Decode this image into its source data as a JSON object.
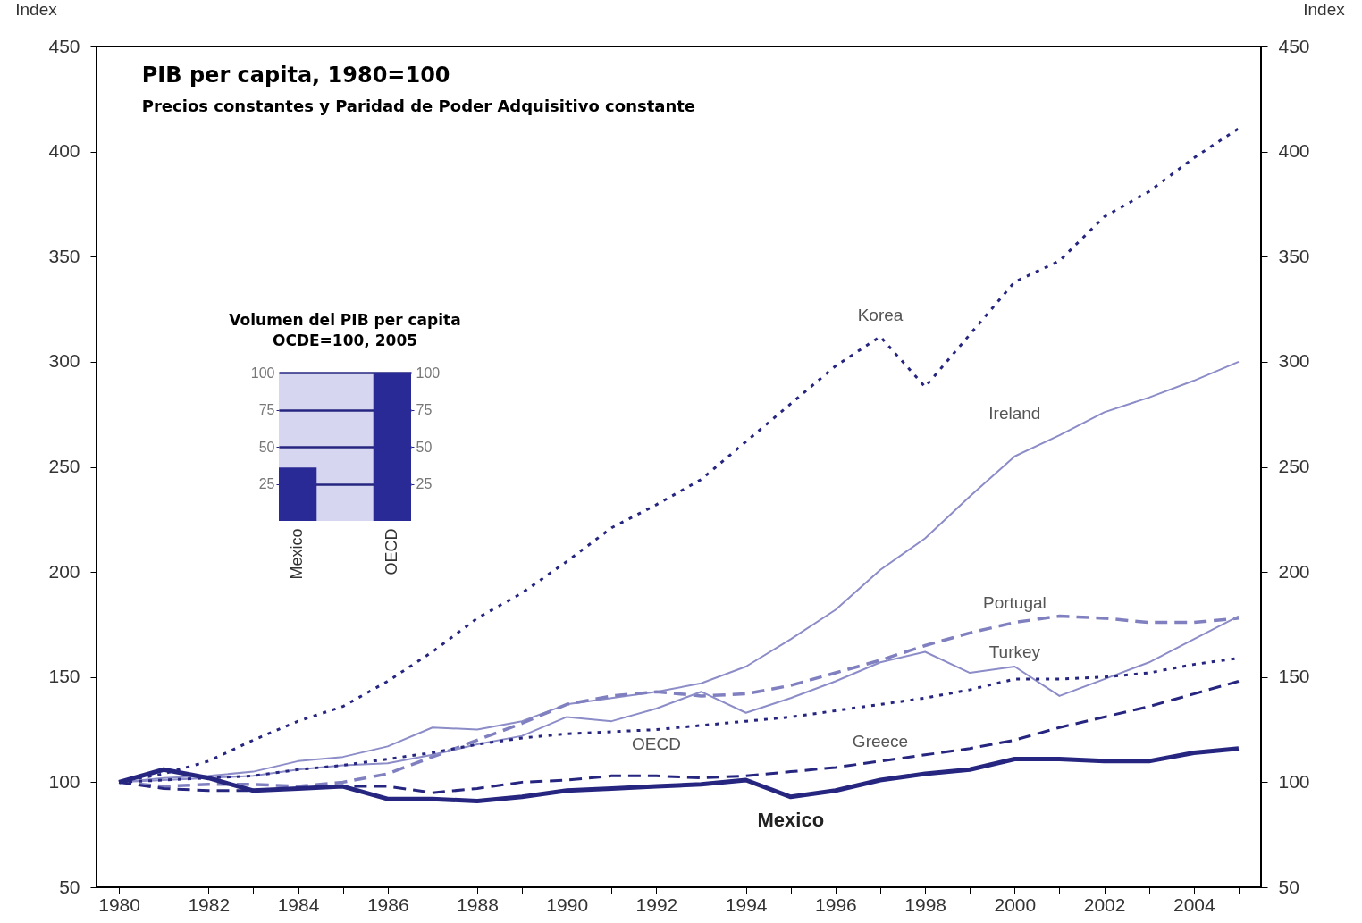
{
  "chart_data": [
    {
      "type": "line",
      "title": "PIB per capita, 1980=100",
      "subtitle": "Precios constantes y Paridad de Poder Adquisitivo constante",
      "ylabel": "Index",
      "y2label": "Index",
      "x": [
        1980,
        1981,
        1982,
        1983,
        1984,
        1985,
        1986,
        1987,
        1988,
        1989,
        1990,
        1991,
        1992,
        1993,
        1994,
        1995,
        1996,
        1997,
        1998,
        1999,
        2000,
        2001,
        2002,
        2003,
        2004,
        2005
      ],
      "xlim": [
        1979.5,
        2005.5
      ],
      "xticks": [
        1980,
        {
          "value": 1981,
          "label": null
        },
        1982,
        {
          "value": 1983,
          "label": null
        },
        1984,
        {
          "value": 1985,
          "label": null
        },
        1986,
        {
          "value": 1987,
          "label": null
        },
        1988,
        {
          "value": 1989,
          "label": null
        },
        1990,
        {
          "value": 1991,
          "label": null
        },
        1992,
        {
          "value": 1993,
          "label": null
        },
        1994,
        {
          "value": 1995,
          "label": null
        },
        1996,
        {
          "value": 1997,
          "label": null
        },
        1998,
        {
          "value": 1999,
          "label": null
        },
        2000,
        {
          "value": 2001,
          "label": null
        },
        2002,
        {
          "value": 2003,
          "label": null
        },
        2004,
        {
          "value": 2005,
          "label": null
        }
      ],
      "ylim": [
        50,
        450
      ],
      "yticks": [
        50,
        100,
        150,
        200,
        250,
        300,
        350,
        400,
        450
      ],
      "y2lim": [
        50,
        450
      ],
      "y2ticks": [
        50,
        100,
        150,
        200,
        250,
        300,
        350,
        400,
        450
      ],
      "series": [
        {
          "name": "Korea",
          "color": "#262680",
          "line_style": "dotted",
          "values": [
            100,
            104,
            110,
            120,
            129,
            136,
            148,
            162,
            178,
            190,
            205,
            221,
            232,
            244,
            262,
            280,
            298,
            312,
            288,
            313,
            338,
            348,
            369,
            381,
            397,
            411
          ]
        },
        {
          "name": "Ireland",
          "color": "#8c8cc8",
          "line_style": "solid",
          "values": [
            100,
            102,
            103,
            105,
            110,
            112,
            117,
            126,
            125,
            129,
            137,
            140,
            143,
            147,
            155,
            168,
            182,
            201,
            216,
            236,
            255,
            265,
            276,
            283,
            291,
            300
          ]
        },
        {
          "name": "Portugal",
          "color": "#8080c0",
          "line_style": "dashed",
          "values": [
            100,
            98,
            99,
            99,
            98,
            100,
            104,
            112,
            120,
            128,
            137,
            141,
            143,
            141,
            142,
            146,
            152,
            158,
            165,
            171,
            176,
            179,
            178,
            176,
            176,
            178
          ]
        },
        {
          "name": "Turkey",
          "color": "#8c8cc8",
          "line_style": "solid",
          "values": [
            100,
            101,
            102,
            103,
            106,
            108,
            109,
            113,
            118,
            122,
            131,
            129,
            135,
            143,
            133,
            140,
            148,
            157,
            162,
            152,
            155,
            141,
            149,
            157,
            168,
            179
          ]
        },
        {
          "name": "OECD",
          "color": "#262680",
          "line_style": "dotted",
          "values": [
            100,
            101,
            102,
            103,
            106,
            108,
            111,
            114,
            118,
            121,
            123,
            124,
            125,
            127,
            129,
            131,
            134,
            137,
            140,
            144,
            149,
            149,
            150,
            152,
            156,
            159
          ]
        },
        {
          "name": "Greece",
          "color": "#262680",
          "line_style": "dashed",
          "values": [
            100,
            97,
            96,
            96,
            97,
            98,
            98,
            95,
            97,
            100,
            101,
            103,
            103,
            102,
            103,
            105,
            107,
            110,
            113,
            116,
            120,
            126,
            131,
            136,
            142,
            148
          ]
        },
        {
          "name": "Mexico",
          "color": "#262680",
          "line_style": "solid",
          "values": [
            100,
            106,
            102,
            96,
            97,
            98,
            92,
            92,
            91,
            93,
            96,
            97,
            98,
            99,
            101,
            93,
            96,
            101,
            104,
            106,
            111,
            111,
            110,
            110,
            114,
            116
          ]
        }
      ]
    },
    {
      "type": "bar",
      "title": "Volumen del PIB per capita",
      "subtitle": "OCDE=100, 2005",
      "categories": [
        "Mexico",
        "OECD"
      ],
      "values": [
        36,
        100
      ],
      "color": "#2a2a96",
      "ylim": [
        0,
        100
      ],
      "yticks": [
        25,
        50,
        75,
        100
      ],
      "y2lim": [
        0,
        100
      ],
      "y2ticks": [
        25,
        50,
        75,
        100
      ],
      "grid": true
    }
  ]
}
